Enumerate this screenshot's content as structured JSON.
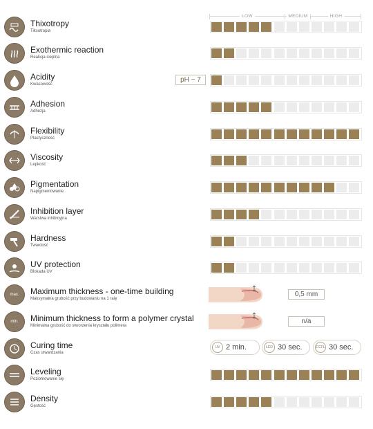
{
  "scale": {
    "low": "LOW",
    "medium": "MEDIUM",
    "high": "HIGH"
  },
  "properties": [
    {
      "title": "Thixotropy",
      "subtitle": "Tiksotropia",
      "level": 5
    },
    {
      "title": "Exothermic reaction",
      "subtitle": "Reakcja cieplna",
      "level": 2
    },
    {
      "title": "Acidity",
      "subtitle": "Kwasowość",
      "level": 1,
      "badge": "pH ~ 7"
    },
    {
      "title": "Adhesion",
      "subtitle": "Adhezja",
      "level": 5
    },
    {
      "title": "Flexibility",
      "subtitle": "Plastyczność",
      "level": 12
    },
    {
      "title": "Viscosity",
      "subtitle": "Lepkość",
      "level": 3
    },
    {
      "title": "Pigmentation",
      "subtitle": "Napigmentowanie",
      "level": 10
    },
    {
      "title": "Inhibition layer",
      "subtitle": "Warstwa inhibicyjna",
      "level": 4
    },
    {
      "title": "Hardness",
      "subtitle": "Twardość",
      "level": 2
    },
    {
      "title": "UV protection",
      "subtitle": "Blokada UV",
      "level": 2
    },
    {
      "title": "Maximum thickness - one-time building",
      "subtitle": "Maksymalna grubość przy budowaniu na 1 raię",
      "value": "0,5 mm",
      "icon_text": "max."
    },
    {
      "title": "Minimum thickness to form a polymer crystal",
      "subtitle": "Minimalna grubość do stworzenia kryształu polimera",
      "value": "n/a",
      "icon_text": "min."
    },
    {
      "title": "Curing time",
      "subtitle": "Czas utwardzania",
      "curing": [
        {
          "lamp": "UV",
          "time": "2 min."
        },
        {
          "lamp": "LED",
          "time": "30 sec."
        },
        {
          "lamp": "CCFL",
          "time": "30 sec."
        }
      ]
    },
    {
      "title": "Leveling",
      "subtitle": "Poziomowanie się",
      "level": 12
    },
    {
      "title": "Density",
      "subtitle": "Gęstość",
      "level": 5
    }
  ],
  "total_cells": 12,
  "colors": {
    "filled": "#9b8156",
    "empty": "#ececec",
    "icon_bg": "#8a7a66"
  },
  "icons": [
    "thixotropy-icon",
    "exothermic-icon",
    "acidity-icon",
    "adhesion-icon",
    "flexibility-icon",
    "viscosity-icon",
    "pigmentation-icon",
    "inhibition-icon",
    "hardness-icon",
    "uv-protection-icon",
    "max-thickness-icon",
    "min-thickness-icon",
    "curing-time-icon",
    "leveling-icon",
    "density-icon"
  ]
}
